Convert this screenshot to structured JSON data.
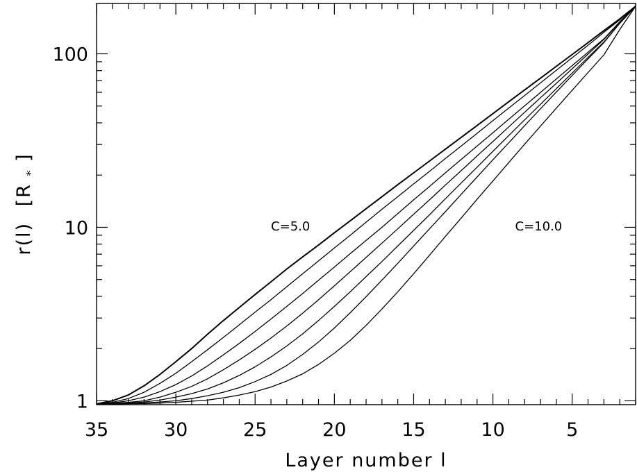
{
  "chart_data": {
    "type": "line",
    "title": "",
    "xlabel": "Layer number l",
    "ylabel_main": "r(l)",
    "ylabel_unit": "[R",
    "ylabel_sub": "*",
    "ylabel_close": "]",
    "xlim": [
      35,
      1
    ],
    "ylim": [
      0.95,
      195
    ],
    "yscale": "log",
    "x_reversed": true,
    "grid": false,
    "line_color": "#000000",
    "x_ticks": [
      35,
      30,
      25,
      20,
      15,
      10,
      5
    ],
    "x_tick_labels": [
      "35",
      "30",
      "25",
      "20",
      "15",
      "10",
      "5"
    ],
    "y_ticks": [
      1,
      10,
      100
    ],
    "y_tick_labels": [
      "1",
      "10",
      "100"
    ],
    "annotations": [
      {
        "text": "C=5.0",
        "x": 24,
        "y": 9.6
      },
      {
        "text": "C=10.0",
        "x": 8.6,
        "y": 9.6
      }
    ],
    "x": [
      35,
      34,
      33,
      32,
      31,
      30,
      29,
      28,
      27,
      26,
      25,
      24,
      23,
      22,
      21,
      20,
      19,
      18,
      17,
      16,
      15,
      14,
      13,
      12,
      11,
      10,
      9,
      8,
      7,
      6,
      5,
      4,
      3,
      2,
      1
    ],
    "series": [
      {
        "values": [
          0.96,
          1.0,
          1.08,
          1.22,
          1.42,
          1.68,
          2.0,
          2.42,
          2.9,
          3.45,
          4.1,
          4.85,
          5.75,
          6.75,
          7.9,
          9.3,
          10.9,
          12.8,
          15.0,
          17.6,
          20.6,
          24.1,
          28.2,
          33.0,
          38.6,
          45.2,
          52.9,
          61.9,
          72.4,
          84.7,
          99.1,
          116,
          136,
          159,
          188
        ]
      },
      {
        "values": [
          0.96,
          0.98,
          1.03,
          1.12,
          1.26,
          1.44,
          1.68,
          1.97,
          2.32,
          2.74,
          3.24,
          3.83,
          4.55,
          5.4,
          6.4,
          7.6,
          9.0,
          10.7,
          12.7,
          15.0,
          17.8,
          21.0,
          24.9,
          29.4,
          34.8,
          41.2,
          48.7,
          57.5,
          68.0,
          80.3,
          95.0,
          112,
          133,
          157,
          188
        ]
      },
      {
        "values": [
          0.96,
          0.97,
          1.0,
          1.05,
          1.13,
          1.24,
          1.39,
          1.59,
          1.84,
          2.14,
          2.51,
          2.96,
          3.5,
          4.15,
          4.95,
          5.9,
          7.05,
          8.4,
          10.0,
          12.0,
          14.4,
          17.2,
          20.6,
          24.6,
          29.4,
          35.1,
          42.0,
          50.1,
          59.9,
          71.6,
          85.5,
          102,
          122,
          153,
          188
        ]
      },
      {
        "values": [
          0.96,
          0.965,
          0.98,
          1.0,
          1.05,
          1.12,
          1.21,
          1.34,
          1.51,
          1.72,
          1.98,
          2.3,
          2.7,
          3.2,
          3.82,
          4.6,
          5.55,
          6.7,
          8.1,
          9.8,
          11.9,
          14.4,
          17.5,
          21.2,
          25.8,
          31.2,
          37.9,
          46.0,
          55.8,
          67.6,
          82.0,
          99.5,
          121,
          152,
          188
        ]
      },
      {
        "values": [
          0.96,
          0.962,
          0.97,
          0.985,
          1.01,
          1.05,
          1.1,
          1.17,
          1.27,
          1.4,
          1.57,
          1.79,
          2.07,
          2.43,
          2.9,
          3.5,
          4.25,
          5.2,
          6.35,
          7.8,
          9.6,
          11.8,
          14.6,
          18.0,
          22.2,
          27.4,
          33.8,
          41.6,
          51.2,
          63.0,
          77.5,
          95.3,
          117,
          150,
          188
        ]
      },
      {
        "values": [
          0.96,
          0.961,
          0.965,
          0.972,
          0.985,
          1.0,
          1.03,
          1.07,
          1.12,
          1.19,
          1.29,
          1.42,
          1.6,
          1.85,
          2.18,
          2.63,
          3.22,
          3.98,
          4.96,
          6.2,
          7.8,
          9.8,
          12.3,
          15.5,
          19.5,
          24.5,
          30.7,
          38.5,
          48.2,
          60.2,
          75.0,
          93.4,
          116,
          150,
          188
        ]
      },
      {
        "values": [
          0.96,
          0.96,
          0.962,
          0.965,
          0.97,
          0.98,
          0.995,
          1.01,
          1.04,
          1.08,
          1.13,
          1.2,
          1.3,
          1.43,
          1.62,
          1.88,
          2.23,
          2.72,
          3.38,
          4.25,
          5.4,
          6.9,
          8.85,
          11.3,
          14.5,
          18.5,
          23.6,
          30.1,
          38.3,
          48.6,
          61.6,
          78.0,
          98.6,
          138,
          188
        ]
      }
    ]
  }
}
